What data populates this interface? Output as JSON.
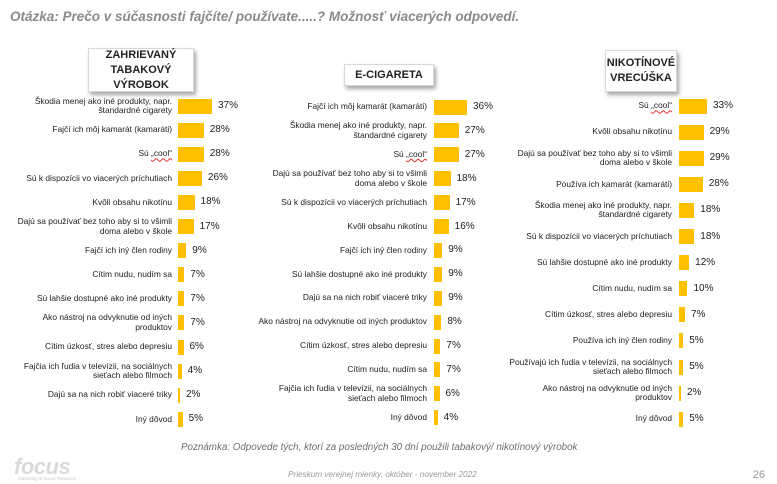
{
  "title": "Otázka: Prečo v súčasnosti fajčíte/ používate.....? Možnosť viacerých odpovedí.",
  "note": "Poznámka: Odpovede tých, ktorí za posledných 30 dní použili tabakový/ nikotínový výrobok",
  "footer": "Prieskum verejnej mienky, október - november 2022",
  "page_number": "26",
  "logo": {
    "text": "focus",
    "subtitle": "Marketing & Social Research"
  },
  "colors": {
    "bar": "#ffc000",
    "title": "#8a8a8a"
  },
  "chart_data": [
    {
      "type": "bar",
      "orientation": "horizontal",
      "title": "ZAHRIEVANÝ TABAKOVÝ VÝROBOK",
      "categories": [
        "Škodia menej ako iné produkty, napr. štandardné cigarety",
        "Fajčí ich môj kamarát (kamaráti)",
        "Sú „cool“",
        "Sú k dispozícii vo viacerých príchutiach",
        "Kvôli obsahu nikotínu",
        "Dajú sa používať bez toho aby si to všimli doma alebo v škole",
        "Fajčí ich iný člen rodiny",
        "Cítim nudu, nudím sa",
        "Sú lahšie dostupné ako iné produkty",
        "Ako nástroj na odvyknutie od iných produktov",
        "Cítim úzkosť, stres alebo depresiu",
        "Fajčia ich ľudia v televízii, na sociálnych sieťach alebo filmoch",
        "Dajú sa na nich robiť viaceré triky",
        "Iný dôvod"
      ],
      "values": [
        37,
        28,
        28,
        26,
        18,
        17,
        9,
        7,
        7,
        7,
        6,
        4,
        2,
        5
      ],
      "value_labels": [
        "37%",
        "28%",
        "28%",
        "26%",
        "18%",
        "17%",
        "9%",
        "7%",
        "7%",
        "7%",
        "6%",
        "4%",
        "2%",
        "5%"
      ],
      "unit": "%"
    },
    {
      "type": "bar",
      "orientation": "horizontal",
      "title": "E-CIGARETA",
      "categories": [
        "Fajčí ich môj kamarát (kamaráti)",
        "Škodia menej ako iné produkty, napr. štandardné cigarety",
        "Sú „cool“",
        "Dajú sa používať bez toho aby si to všimli doma alebo v škole",
        "Sú k dispozícii vo viacerých príchutiach",
        "Kvôli obsahu nikotínu",
        "Fajčí ich iný člen rodiny",
        "Sú lahšie dostupné ako iné produkty",
        "Dajú sa na nich robiť viaceré triky",
        "Ako nástroj na odvyknutie od iných produktov",
        "Cítim úzkosť, stres alebo depresiu",
        "Cítim nudu, nudím sa",
        "Fajčia ich ľudia v televízii, na sociálnych sieťach alebo filmoch",
        "Iný dôvod"
      ],
      "values": [
        36,
        27,
        27,
        18,
        17,
        16,
        9,
        9,
        9,
        8,
        7,
        7,
        6,
        4
      ],
      "value_labels": [
        "36%",
        "27%",
        "27%",
        "18%",
        "17%",
        "16%",
        "9%",
        "9%",
        "9%",
        "8%",
        "7%",
        "7%",
        "6%",
        "4%"
      ],
      "unit": "%"
    },
    {
      "type": "bar",
      "orientation": "horizontal",
      "title": "NIKOTÍNOVÉ VRECÚŠKA",
      "categories": [
        "Sú „cool“",
        "Kvôli obsahu nikotínu",
        "Dajú sa používať bez toho aby si to všimli doma alebo v škole",
        "Používa ich kamarát (kamaráti)",
        "Škodia menej ako iné produkty, napr. štandardné cigarety",
        "Sú k dispozícii vo viacerých príchutiach",
        "Sú lahšie dostupné ako iné produkty",
        "Cítim nudu, nudím sa",
        "Cítim úzkosť, stres alebo depresiu",
        "Používa ich iný člen rodiny",
        "Používajú ich ľudia v televízii, na sociálnych sieťach alebo filmoch",
        "Ako nástroj na odvyknutie od iných produktov",
        "Iný dôvod"
      ],
      "values": [
        33,
        29,
        29,
        28,
        18,
        18,
        12,
        10,
        7,
        5,
        5,
        2,
        5
      ],
      "value_labels": [
        "33%",
        "29%",
        "29%",
        "28%",
        "18%",
        "18%",
        "12%",
        "10%",
        "7%",
        "5%",
        "5%",
        "2%",
        "5%"
      ],
      "unit": "%"
    }
  ]
}
